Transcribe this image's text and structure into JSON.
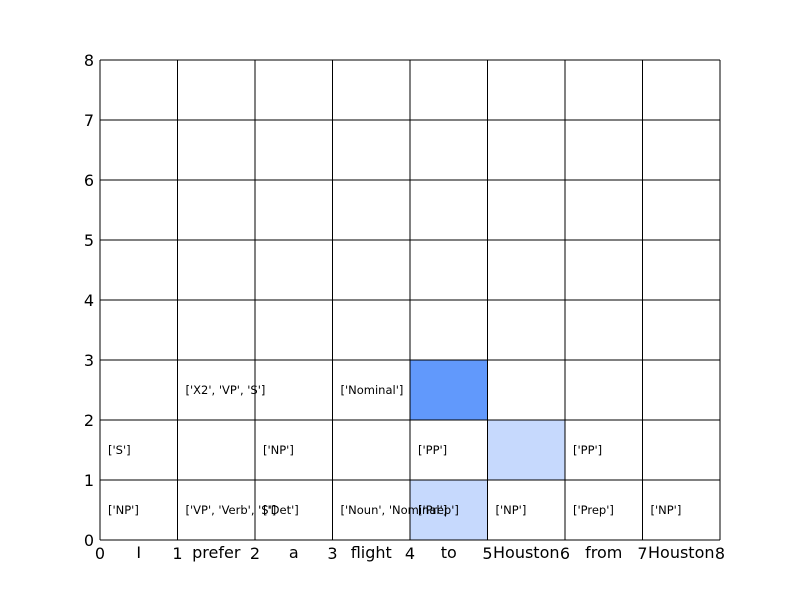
{
  "chart_data": {
    "type": "heatmap",
    "title": "",
    "xlabel": "",
    "ylabel": "",
    "xlim": [
      0,
      8
    ],
    "ylim": [
      0,
      8
    ],
    "grid": true,
    "x_ticks": [
      "0",
      "1",
      "2",
      "3",
      "4",
      "5",
      "6",
      "7",
      "8"
    ],
    "y_ticks": [
      "0",
      "1",
      "2",
      "3",
      "4",
      "5",
      "6",
      "7",
      "8"
    ],
    "words": [
      "I",
      "prefer",
      "a",
      "flight",
      "to",
      "Houston",
      "from",
      "Houston"
    ],
    "cells": [
      {
        "col": 0,
        "row": 0,
        "label": "['NP']"
      },
      {
        "col": 1,
        "row": 0,
        "label": "['VP', 'Verb', 'S']"
      },
      {
        "col": 2,
        "row": 0,
        "label": "['Det']"
      },
      {
        "col": 3,
        "row": 0,
        "label": "['Noun', 'Nominal']"
      },
      {
        "col": 4,
        "row": 0,
        "label": "['Prep']"
      },
      {
        "col": 5,
        "row": 0,
        "label": "['NP']"
      },
      {
        "col": 6,
        "row": 0,
        "label": "['Prep']"
      },
      {
        "col": 7,
        "row": 0,
        "label": "['NP']"
      },
      {
        "col": 0,
        "row": 1,
        "label": "['S']"
      },
      {
        "col": 2,
        "row": 1,
        "label": "['NP']"
      },
      {
        "col": 4,
        "row": 1,
        "label": "['PP']"
      },
      {
        "col": 6,
        "row": 1,
        "label": "['PP']"
      },
      {
        "col": 1,
        "row": 2,
        "label": "['X2', 'VP', 'S']"
      },
      {
        "col": 3,
        "row": 2,
        "label": "['Nominal']"
      }
    ],
    "highlights": [
      {
        "col": 4,
        "row": 2,
        "color": "#6199fc"
      },
      {
        "col": 5,
        "row": 1,
        "color": "#c6d9fd"
      },
      {
        "col": 4,
        "row": 0,
        "color": "#c6d9fd"
      }
    ]
  }
}
